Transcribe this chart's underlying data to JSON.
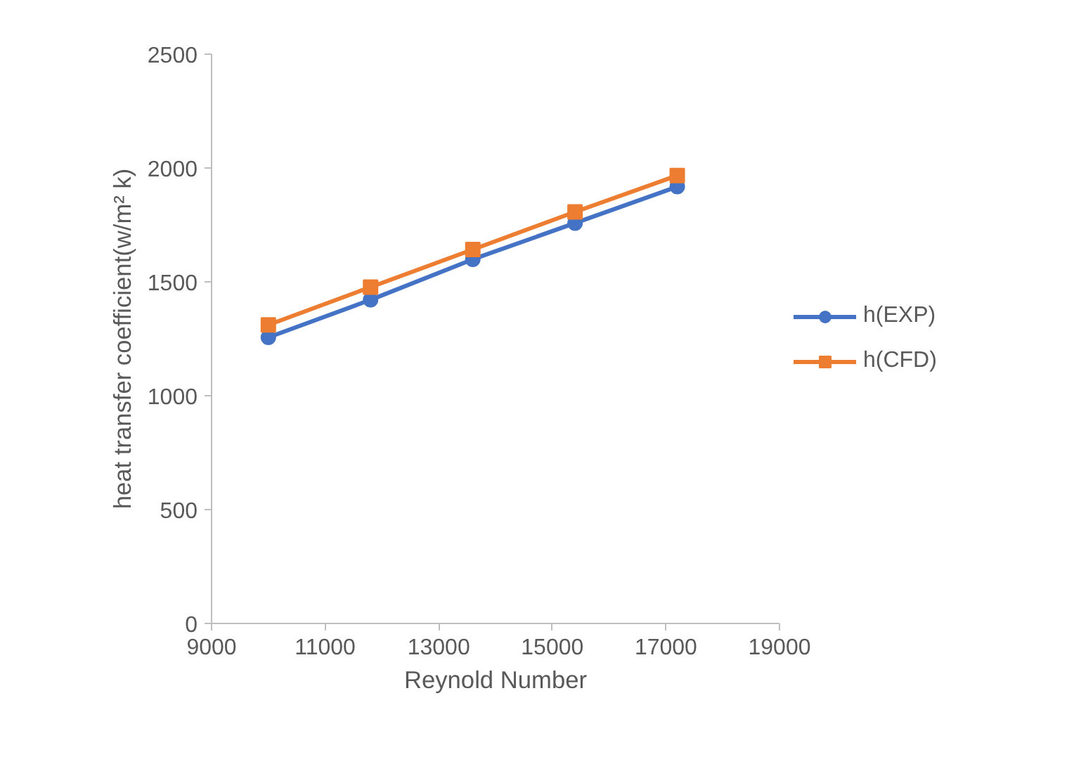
{
  "chart_data": {
    "type": "line",
    "xlabel": "Reynold Number",
    "ylabel": "heat transfer coefficient(w/m² k)",
    "x": [
      10000,
      11800,
      13600,
      15400,
      17200
    ],
    "series": [
      {
        "name": "h(EXP)",
        "color": "#4472c4",
        "marker": "circle",
        "values": [
          1256,
          1421,
          1599,
          1758,
          1918
        ]
      },
      {
        "name": "h(CFD)",
        "color": "#ed7d31",
        "marker": "square",
        "values": [
          1311,
          1477,
          1642,
          1807,
          1967
        ]
      }
    ],
    "xlim": [
      9000,
      19000
    ],
    "xticks": [
      9000,
      11000,
      13000,
      15000,
      17000,
      19000
    ],
    "ylim": [
      0,
      2500
    ],
    "yticks": [
      0,
      500,
      1000,
      1500,
      2000,
      2500
    ],
    "grid": false,
    "legend": "right",
    "line_style": "solid"
  }
}
